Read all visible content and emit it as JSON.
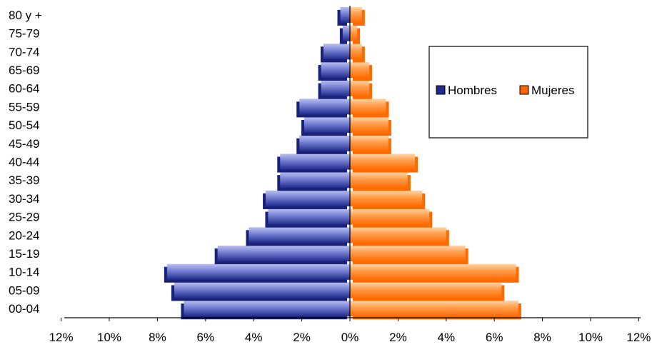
{
  "chart_data": {
    "type": "bar",
    "orientation": "horizontal-population-pyramid",
    "categories": [
      "00-04",
      "05-09",
      "10-14",
      "15-19",
      "20-24",
      "25-29",
      "30-34",
      "35-39",
      "40-44",
      "45-49",
      "50-54",
      "55-59",
      "60-64",
      "65-69",
      "70-74",
      "75-79",
      "80 y +"
    ],
    "series": [
      {
        "name": "Hombres",
        "color": "#1f2a8c",
        "values": [
          6.9,
          7.3,
          7.6,
          5.5,
          4.2,
          3.4,
          3.5,
          2.9,
          2.9,
          2.1,
          1.9,
          2.1,
          1.2,
          1.2,
          1.1,
          0.3,
          0.4
        ]
      },
      {
        "name": "Mujeres",
        "color": "#ff6600",
        "values": [
          7.0,
          6.3,
          6.9,
          4.8,
          4.0,
          3.3,
          3.0,
          2.4,
          2.7,
          1.6,
          1.6,
          1.5,
          0.8,
          0.8,
          0.5,
          0.3,
          0.5
        ]
      }
    ],
    "x_tick_labels": [
      "12%",
      "10%",
      "8%",
      "6%",
      "4%",
      "2%",
      "0%",
      "2%",
      "4%",
      "6%",
      "8%",
      "10%",
      "12%"
    ],
    "xlim": [
      -12,
      12
    ],
    "grid": false,
    "legend_position": "right",
    "title": "",
    "xlabel": "",
    "ylabel": ""
  }
}
